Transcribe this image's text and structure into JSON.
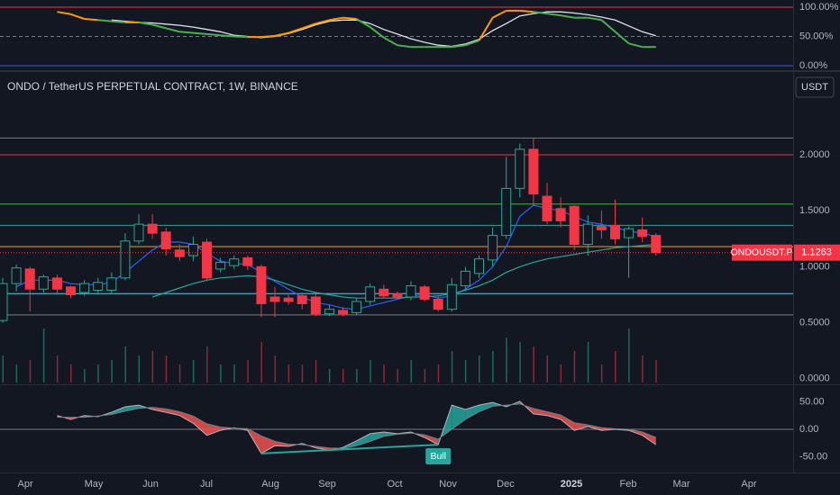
{
  "chart_data": [
    {
      "type": "oscillator",
      "ylim": [
        -7.7,
        112.3
      ],
      "yticks": [
        {
          "value": 100,
          "label": "100.00%"
        },
        {
          "value": 50,
          "label": "50.00%"
        },
        {
          "value": 0,
          "label": "0.00%"
        }
      ],
      "levels": [
        {
          "value": 100,
          "color": "#f23645"
        },
        {
          "value": 50,
          "color": "#787b86",
          "dashed": true
        },
        {
          "value": 0,
          "color": "#2962ff"
        }
      ],
      "series": [
        {
          "values": [
            null,
            null,
            null,
            null,
            92,
            88,
            80,
            78,
            76,
            74,
            74,
            70,
            64,
            58,
            56,
            54,
            52,
            50,
            49,
            49,
            51,
            56,
            64,
            72,
            78,
            82,
            80,
            66,
            48,
            35,
            32,
            32,
            32,
            32,
            35,
            43,
            82,
            94,
            94,
            92,
            89,
            86,
            82,
            82,
            78,
            58,
            38,
            32,
            32
          ],
          "up_color": "#ff9800",
          "down_color": "#4caf50"
        },
        {
          "values": [
            null,
            null,
            null,
            null,
            null,
            null,
            null,
            null,
            78,
            76,
            74,
            73,
            71,
            69,
            66,
            62,
            58,
            52,
            50,
            48,
            50,
            55,
            62,
            70,
            76,
            78,
            78,
            72,
            62,
            54,
            46,
            40,
            35,
            33,
            37,
            45,
            60,
            72,
            85,
            89,
            92,
            92,
            90,
            87,
            83,
            78,
            68,
            58,
            51
          ],
          "color": "#e0e3eb"
        }
      ]
    },
    {
      "type": "candlestick",
      "title": "ONDO / TetherUS PERPETUAL CONTRACT, 1W, BINANCE",
      "currency": "USDT",
      "symbol": "ONDOUSDT.P",
      "open": [
        0.52,
        0.85,
        0.98,
        0.8,
        0.9,
        0.82,
        0.77,
        0.79,
        0.79,
        0.9,
        1.23,
        1.38,
        1.31,
        1.15,
        1.1,
        1.22,
        0.98,
        1.01,
        1.08,
        1.0,
        0.73,
        0.72,
        0.74,
        0.73,
        0.58,
        0.61,
        0.59,
        0.69,
        0.8,
        0.76,
        0.73,
        0.82,
        0.71,
        0.62,
        0.83,
        0.94,
        1.06,
        1.28,
        1.7,
        2.05,
        1.63,
        1.52,
        1.54,
        1.2,
        1.36,
        1.37,
        1.26,
        1.33,
        1.28
      ],
      "high": [
        0.9,
        1.02,
        1.0,
        0.93,
        0.93,
        0.83,
        0.88,
        0.9,
        0.95,
        1.3,
        1.47,
        1.47,
        1.35,
        1.2,
        1.27,
        1.25,
        1.08,
        1.1,
        1.1,
        1.02,
        0.82,
        0.75,
        0.77,
        0.76,
        0.66,
        0.64,
        0.72,
        0.85,
        0.84,
        0.78,
        0.87,
        0.84,
        0.74,
        0.9,
        1.0,
        1.1,
        1.35,
        1.98,
        2.1,
        2.15,
        1.75,
        1.62,
        1.55,
        1.46,
        1.5,
        1.6,
        1.36,
        1.44,
        1.3
      ],
      "low": [
        0.5,
        0.78,
        0.6,
        0.77,
        0.75,
        0.72,
        0.74,
        0.76,
        0.76,
        0.88,
        1.2,
        1.25,
        1.1,
        1.05,
        1.05,
        0.87,
        0.95,
        0.98,
        0.97,
        0.55,
        0.55,
        0.66,
        0.62,
        0.56,
        0.56,
        0.56,
        0.57,
        0.66,
        0.72,
        0.71,
        0.7,
        0.69,
        0.6,
        0.6,
        0.8,
        0.9,
        1.0,
        1.25,
        1.62,
        1.55,
        1.38,
        1.35,
        1.15,
        1.1,
        1.25,
        1.2,
        0.9,
        1.22,
        1.1
      ],
      "close": [
        0.85,
        0.99,
        0.8,
        0.91,
        0.8,
        0.75,
        0.85,
        0.86,
        0.9,
        1.23,
        1.38,
        1.3,
        1.16,
        1.09,
        1.2,
        0.9,
        1.04,
        1.07,
        1.01,
        0.67,
        0.69,
        0.69,
        0.67,
        0.58,
        0.62,
        0.58,
        0.69,
        0.82,
        0.74,
        0.73,
        0.83,
        0.71,
        0.62,
        0.84,
        0.96,
        1.07,
        1.28,
        1.7,
        2.05,
        1.65,
        1.41,
        1.41,
        1.2,
        1.38,
        1.33,
        1.25,
        1.34,
        1.27,
        1.1263
      ],
      "up_color": "#22ab94",
      "down_color": "#f23645",
      "xlim": [
        -0.2,
        58.08
      ],
      "ylim": [
        -0.05,
        2.74
      ],
      "yticks": [
        {
          "value": 2,
          "label": "2.0000"
        },
        {
          "value": 1.5,
          "label": "1.5000"
        },
        {
          "value": 1,
          "label": "1.0000"
        },
        {
          "value": 0.5,
          "label": "0.5000"
        },
        {
          "value": 0,
          "label": "0.0000"
        }
      ],
      "xticks": [
        {
          "value": 1.66,
          "label": "Apr"
        },
        {
          "value": 6.69,
          "label": "May"
        },
        {
          "value": 10.86,
          "label": "Jun"
        },
        {
          "value": 14.97,
          "label": "Jul"
        },
        {
          "value": 19.67,
          "label": "Aug"
        },
        {
          "value": 23.84,
          "label": "Sep"
        },
        {
          "value": 28.81,
          "label": "Oct"
        },
        {
          "value": 32.72,
          "label": "Nov"
        },
        {
          "value": 36.95,
          "label": "Dec"
        },
        {
          "value": 41.79,
          "label": "2025"
        },
        {
          "value": 45.96,
          "label": "Feb"
        },
        {
          "value": 49.87,
          "label": "Mar"
        },
        {
          "value": 54.83,
          "label": "Apr"
        }
      ],
      "levels": [
        {
          "value": 2.15,
          "color": "#787b86"
        },
        {
          "value": 2.0,
          "color": "#f23645"
        },
        {
          "value": 1.56,
          "color": "#4caf50"
        },
        {
          "value": 1.37,
          "color": "#26a69a"
        },
        {
          "value": 1.18,
          "color": "#ff9800"
        },
        {
          "value": 0.76,
          "color": "#4dd0e1"
        },
        {
          "value": 0.57,
          "color": "#787b86"
        }
      ],
      "series": [
        {
          "values": [
            null,
            0.82,
            0.88,
            0.88,
            0.88,
            0.85,
            0.84,
            0.84,
            0.86,
            0.95,
            1.05,
            1.15,
            1.22,
            1.22,
            1.2,
            1.12,
            1.05,
            1.03,
            1.02,
            0.95,
            0.87,
            0.8,
            0.73,
            0.68,
            0.66,
            0.63,
            0.62,
            0.65,
            0.68,
            0.71,
            0.74,
            0.75,
            0.72,
            0.74,
            0.8,
            0.88,
            1.0,
            1.18,
            1.45,
            1.55,
            1.52,
            1.5,
            1.45,
            1.4,
            1.38,
            1.35,
            1.32,
            1.3,
            1.27
          ],
          "color": "#2962ff"
        },
        {
          "values": [
            null,
            null,
            null,
            null,
            null,
            null,
            null,
            null,
            null,
            null,
            null,
            0.73,
            0.77,
            0.81,
            0.85,
            0.88,
            0.9,
            0.91,
            0.92,
            0.91,
            0.88,
            0.84,
            0.8,
            0.77,
            0.75,
            0.73,
            0.72,
            0.72,
            0.72,
            0.72,
            0.73,
            0.73,
            0.74,
            0.76,
            0.79,
            0.83,
            0.88,
            0.95,
            1.0,
            1.04,
            1.07,
            1.09,
            1.11,
            1.13,
            1.15,
            1.17,
            1.18,
            1.19,
            1.2
          ],
          "color": "#26a69a"
        }
      ],
      "volume": [
        30,
        20,
        25,
        60,
        30,
        20,
        15,
        20,
        25,
        40,
        30,
        35,
        30,
        20,
        25,
        40,
        20,
        20,
        25,
        45,
        30,
        20,
        20,
        25,
        15,
        15,
        15,
        25,
        20,
        15,
        25,
        15,
        20,
        35,
        25,
        30,
        35,
        50,
        45,
        40,
        30,
        20,
        35,
        45,
        20,
        35,
        60,
        30,
        25
      ],
      "volume_lim": [
        0,
        100
      ]
    },
    {
      "type": "macd",
      "ylim": [
        -78.7,
        80.3
      ],
      "yticks": [
        {
          "value": 50,
          "label": "50.00"
        },
        {
          "value": 0,
          "label": "0.00"
        },
        {
          "value": -50,
          "label": "-50.00"
        }
      ],
      "levels": [
        {
          "value": 0,
          "color": "#787b86"
        }
      ],
      "series": [
        {
          "values": [
            null,
            null,
            null,
            null,
            25,
            18,
            25,
            23,
            31,
            41,
            44,
            36,
            31,
            25,
            11,
            -11,
            -2,
            3,
            -2,
            -44,
            -30,
            -31,
            -26,
            -34,
            -38,
            -33,
            -21,
            -8,
            -5,
            -8,
            -5,
            -15,
            -28,
            44,
            36,
            44,
            49,
            41,
            51,
            28,
            25,
            18,
            -2,
            5,
            -2,
            0,
            -2,
            -11,
            -28
          ],
          "color": "#b2b5be"
        },
        {
          "values": [
            null,
            null,
            null,
            null,
            22,
            22,
            22,
            24,
            27,
            33,
            38,
            40,
            37,
            32,
            24,
            10,
            4,
            2,
            1,
            -12,
            -22,
            -27,
            -28,
            -31,
            -34,
            -35,
            -30,
            -22,
            -13,
            -9,
            -7,
            -10,
            -18,
            0,
            18,
            32,
            42,
            44,
            46,
            38,
            32,
            26,
            12,
            8,
            3,
            1,
            0,
            -5,
            -15
          ],
          "color": "#787b86"
        }
      ],
      "fill_up": "#26a69a",
      "fill_down": "#ef5350",
      "divergence": [
        19,
        32
      ],
      "annotation": {
        "text": "Bull",
        "x": 32
      }
    }
  ]
}
